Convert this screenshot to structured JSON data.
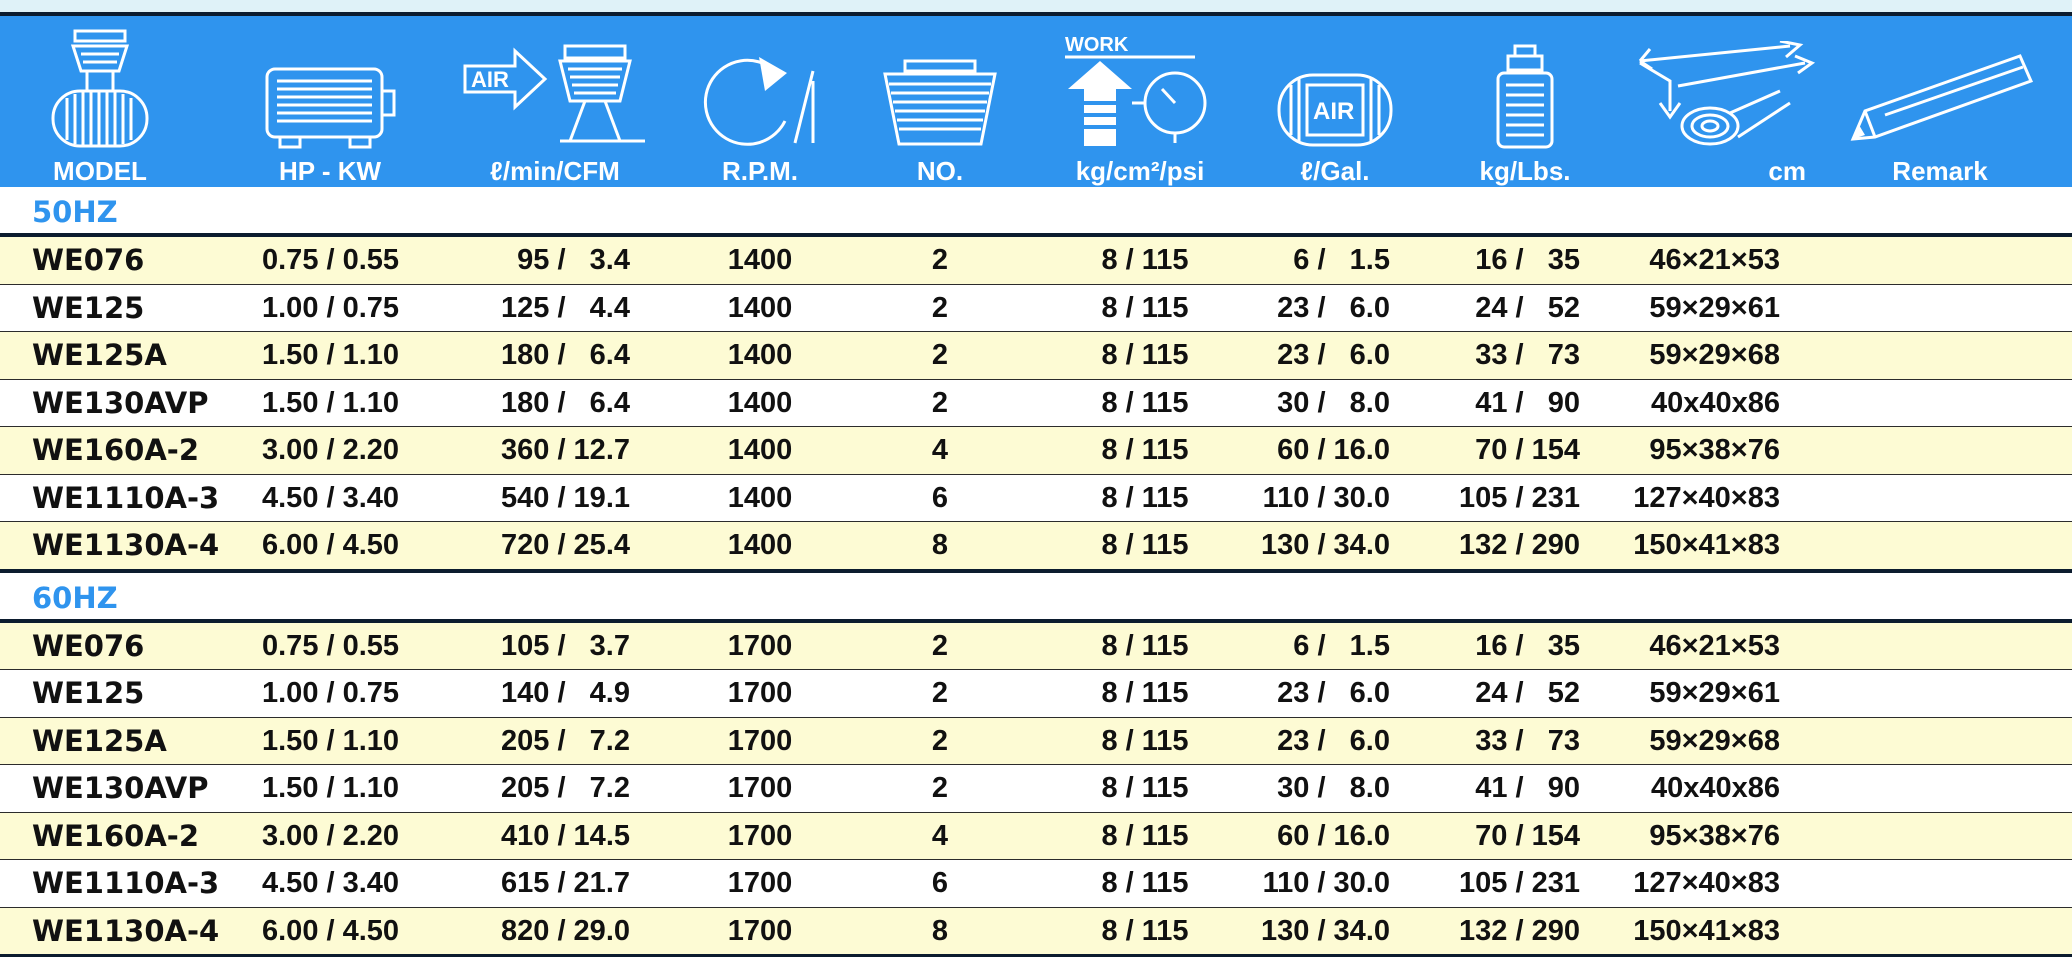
{
  "header": {
    "columns": [
      {
        "key": "model",
        "label": "MODEL",
        "icon": "compressor-unit-icon"
      },
      {
        "key": "hp_kw",
        "label": "HP  -  KW",
        "icon": "motor-icon"
      },
      {
        "key": "air_flow",
        "label": "ℓ/min/CFM",
        "icon": "air-flow-icon",
        "icon_text": "AIR"
      },
      {
        "key": "rpm",
        "label": "R.P.M.",
        "icon": "rotation-icon"
      },
      {
        "key": "no",
        "label": "NO.",
        "icon": "cylinder-head-icon"
      },
      {
        "key": "pressure",
        "label": "kg/cm²/psi",
        "icon": "work-pressure-gauge-icon",
        "icon_text": "WORK"
      },
      {
        "key": "tank",
        "label": "ℓ/Gal.",
        "icon": "air-tank-icon",
        "icon_text": "AIR"
      },
      {
        "key": "weight",
        "label": "kg/Lbs.",
        "icon": "weight-icon"
      },
      {
        "key": "dimensions",
        "label": "cm",
        "icon": "dimensions-tape-icon"
      },
      {
        "key": "remark",
        "label": "Remark",
        "icon": "pencil-icon"
      }
    ]
  },
  "sections": [
    {
      "label": "50HZ",
      "rows": [
        {
          "model": "WE076",
          "hp_kw": "0.75 / 0.55",
          "air_flow": "95 /   3.4",
          "rpm": "1400",
          "no": "2",
          "pressure": "8 / 115",
          "tank": "6 /   1.5",
          "weight": "16 /   35",
          "dimensions": "46×21×53",
          "remark": ""
        },
        {
          "model": "WE125",
          "hp_kw": "1.00 / 0.75",
          "air_flow": "125 /   4.4",
          "rpm": "1400",
          "no": "2",
          "pressure": "8 / 115",
          "tank": "23 /   6.0",
          "weight": "24 /   52",
          "dimensions": "59×29×61",
          "remark": ""
        },
        {
          "model": "WE125A",
          "hp_kw": "1.50 / 1.10",
          "air_flow": "180 /   6.4",
          "rpm": "1400",
          "no": "2",
          "pressure": "8 / 115",
          "tank": "23 /   6.0",
          "weight": "33 /   73",
          "dimensions": "59×29×68",
          "remark": ""
        },
        {
          "model": "WE130AVP",
          "hp_kw": "1.50 / 1.10",
          "air_flow": "180 /   6.4",
          "rpm": "1400",
          "no": "2",
          "pressure": "8 / 115",
          "tank": "30 /   8.0",
          "weight": "41 /   90",
          "dimensions": "40x40x86",
          "remark": ""
        },
        {
          "model": "WE160A-2",
          "hp_kw": "3.00 / 2.20",
          "air_flow": "360 / 12.7",
          "rpm": "1400",
          "no": "4",
          "pressure": "8 / 115",
          "tank": "60 / 16.0",
          "weight": "70 / 154",
          "dimensions": "95×38×76",
          "remark": ""
        },
        {
          "model": "WE1110A-3",
          "hp_kw": "4.50 / 3.40",
          "air_flow": "540 / 19.1",
          "rpm": "1400",
          "no": "6",
          "pressure": "8 / 115",
          "tank": "110 / 30.0",
          "weight": "105 / 231",
          "dimensions": "127×40×83",
          "remark": ""
        },
        {
          "model": "WE1130A-4",
          "hp_kw": "6.00 / 4.50",
          "air_flow": "720 / 25.4",
          "rpm": "1400",
          "no": "8",
          "pressure": "8 / 115",
          "tank": "130 / 34.0",
          "weight": "132 / 290",
          "dimensions": "150×41×83",
          "remark": ""
        }
      ]
    },
    {
      "label": "60HZ",
      "rows": [
        {
          "model": "WE076",
          "hp_kw": "0.75 / 0.55",
          "air_flow": "105 /   3.7",
          "rpm": "1700",
          "no": "2",
          "pressure": "8 / 115",
          "tank": "6 /   1.5",
          "weight": "16 /   35",
          "dimensions": "46×21×53",
          "remark": ""
        },
        {
          "model": "WE125",
          "hp_kw": "1.00 / 0.75",
          "air_flow": "140 /   4.9",
          "rpm": "1700",
          "no": "2",
          "pressure": "8 / 115",
          "tank": "23 /   6.0",
          "weight": "24 /   52",
          "dimensions": "59×29×61",
          "remark": ""
        },
        {
          "model": "WE125A",
          "hp_kw": "1.50 / 1.10",
          "air_flow": "205 /   7.2",
          "rpm": "1700",
          "no": "2",
          "pressure": "8 / 115",
          "tank": "23 /   6.0",
          "weight": "33 /   73",
          "dimensions": "59×29×68",
          "remark": ""
        },
        {
          "model": "WE130AVP",
          "hp_kw": "1.50 / 1.10",
          "air_flow": "205 /   7.2",
          "rpm": "1700",
          "no": "2",
          "pressure": "8 / 115",
          "tank": "30 /   8.0",
          "weight": "41 /   90",
          "dimensions": "40x40x86",
          "remark": ""
        },
        {
          "model": "WE160A-2",
          "hp_kw": "3.00 / 2.20",
          "air_flow": "410 / 14.5",
          "rpm": "1700",
          "no": "4",
          "pressure": "8 / 115",
          "tank": "60 / 16.0",
          "weight": "70 / 154",
          "dimensions": "95×38×76",
          "remark": ""
        },
        {
          "model": "WE1110A-3",
          "hp_kw": "4.50 / 3.40",
          "air_flow": "615 / 21.7",
          "rpm": "1700",
          "no": "6",
          "pressure": "8 / 115",
          "tank": "110 / 30.0",
          "weight": "105 / 231",
          "dimensions": "127×40×83",
          "remark": ""
        },
        {
          "model": "WE1130A-4",
          "hp_kw": "6.00 / 4.50",
          "air_flow": "820 / 29.0",
          "rpm": "1700",
          "no": "8",
          "pressure": "8 / 115",
          "tank": "130 / 34.0",
          "weight": "132 / 290",
          "dimensions": "150×41×83",
          "remark": ""
        }
      ]
    }
  ],
  "colors": {
    "header_bg": "#2f94ee",
    "row_highlight": "#fdfbd4",
    "section_label": "#2f94ee",
    "rule": "#0c1c2e"
  }
}
